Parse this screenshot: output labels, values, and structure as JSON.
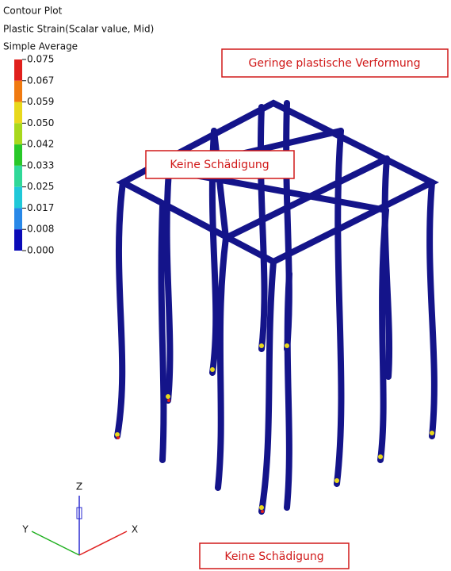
{
  "legend": {
    "title": "Contour Plot",
    "subtitle": "Plastic Strain(Scalar value, Mid)",
    "method": "Simple Average",
    "levels": [
      "0.075",
      "0.067",
      "0.059",
      "0.050",
      "0.042",
      "0.033",
      "0.025",
      "0.017",
      "0.008",
      "0.000"
    ],
    "colors": [
      "#e0201c",
      "#f07a10",
      "#e8d81c",
      "#a8d81c",
      "#28c828",
      "#30d898",
      "#20c8d8",
      "#2888e8",
      "#0a0ab8"
    ]
  },
  "annotations": {
    "top_right": "Geringe plastische Verformung",
    "middle": "Keine Schädigung",
    "bottom": "Keine Schädigung"
  },
  "triad": {
    "z": "Z",
    "x": "X",
    "y": "Y"
  }
}
